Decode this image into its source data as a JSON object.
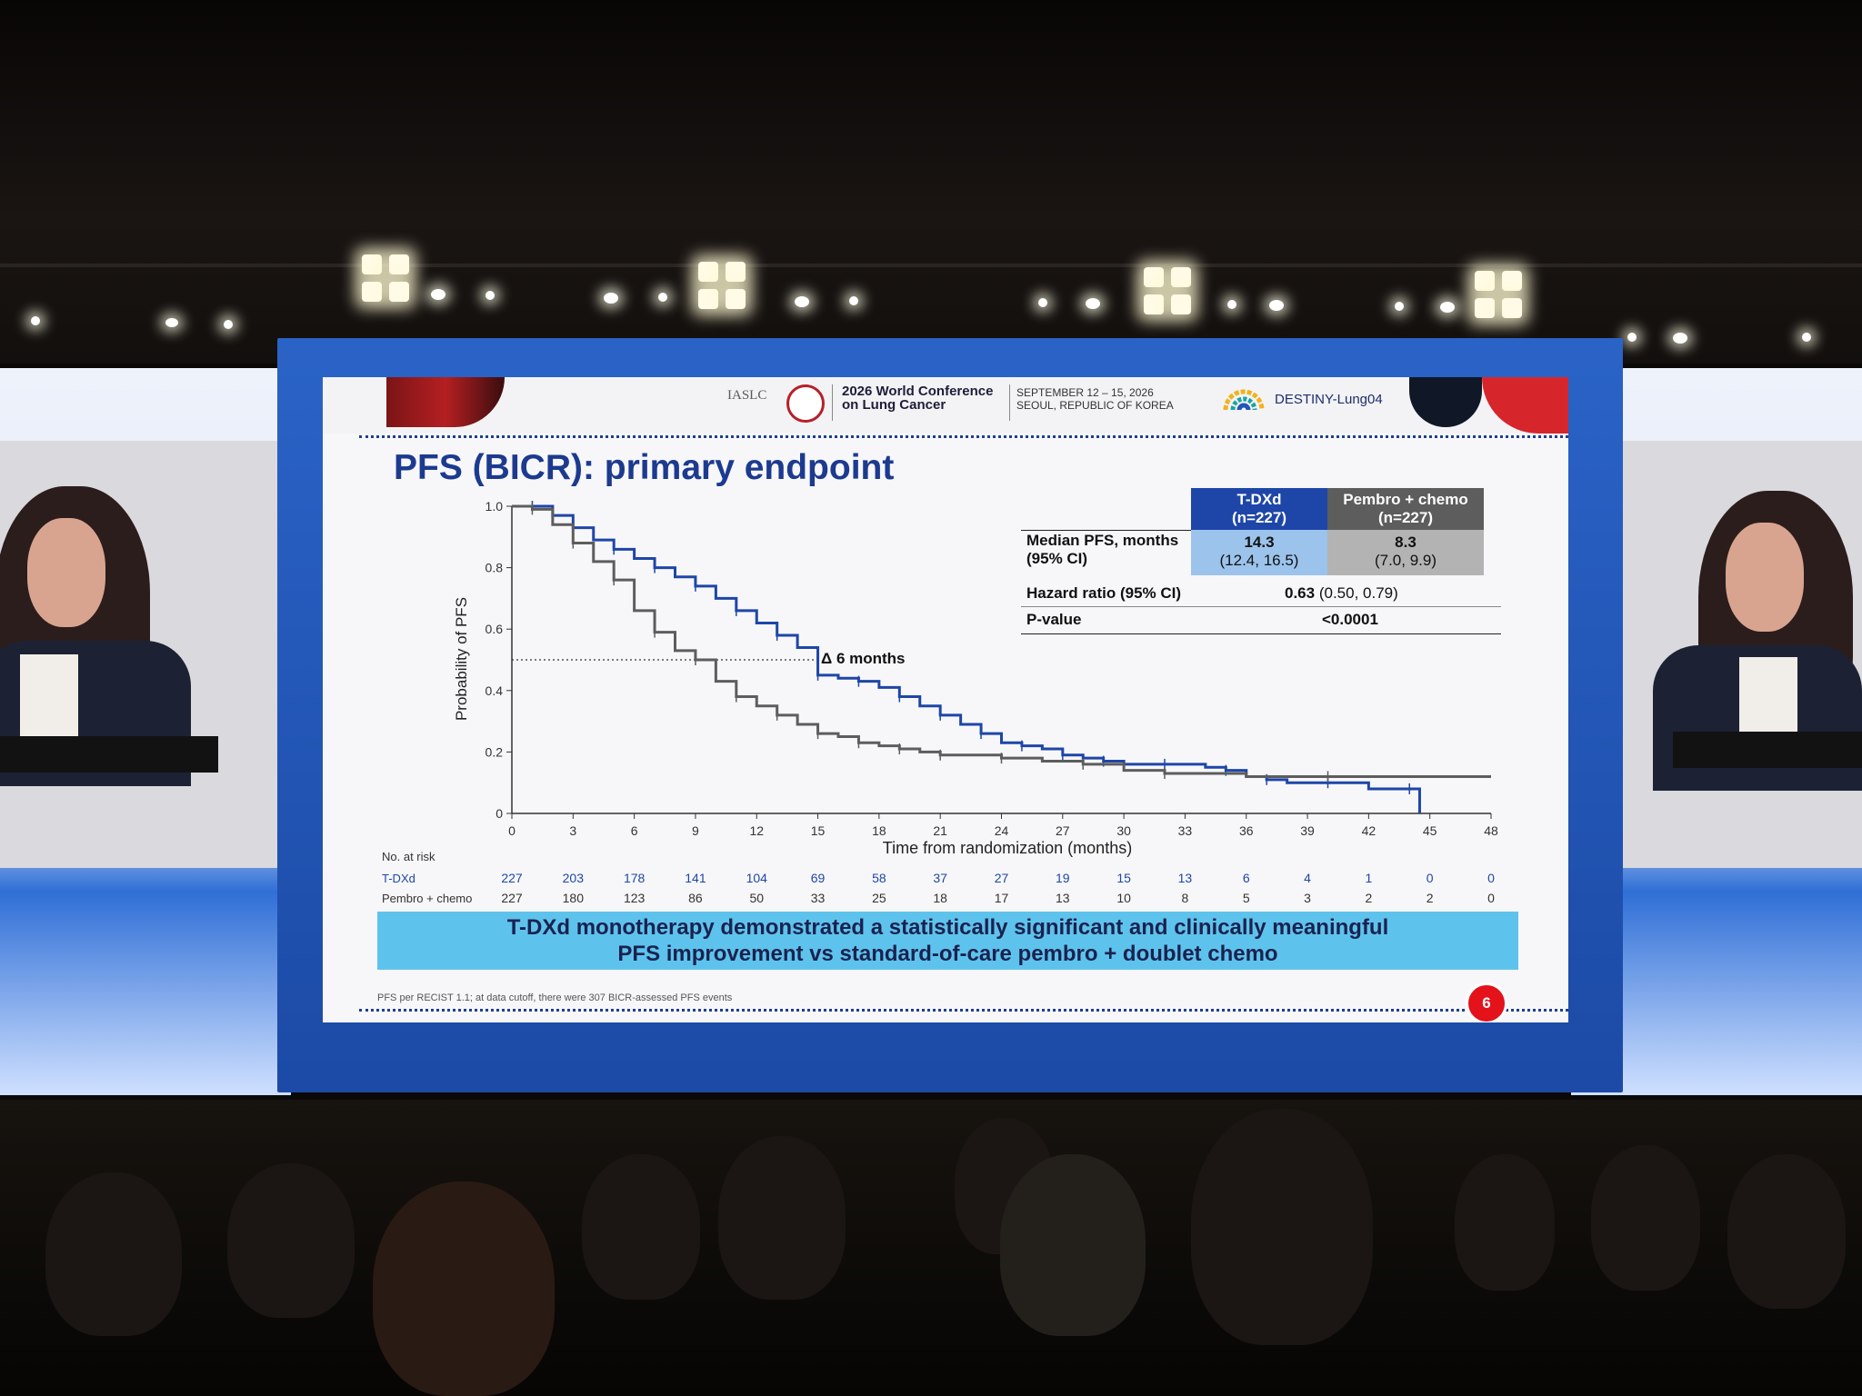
{
  "colors": {
    "tdxd": "#1e46a8",
    "pembro": "#5d5d5d",
    "banner": "#5ec3ec",
    "title": "#1c3a8f",
    "badge": "#e3121b"
  },
  "header": {
    "iaslc": "IASLC",
    "conference_line1": "2026 World Conference",
    "conference_line2": "on Lung Cancer",
    "date_line1": "SEPTEMBER 12 – 15, 2026",
    "date_line2": "SEOUL, REPUBLIC OF KOREA",
    "study_logo_name": "DESTINY-Lung04"
  },
  "slide": {
    "title": "PFS (BICR): primary endpoint",
    "banner_line1": "T-DXd monotherapy demonstrated a statistically significant and clinically meaningful",
    "banner_line2": "PFS improvement vs standard-of-care pembro + doublet chemo",
    "footnote": "PFS per RECIST 1.1; at data cutoff, there were 307 BICR-assessed PFS events",
    "page_number": "6"
  },
  "table": {
    "col1_line1": "T-DXd",
    "col1_line2": "(n=227)",
    "col2_line1": "Pembro + chemo",
    "col2_line2": "(n=227)",
    "row1_label_line1": "Median PFS, months",
    "row1_label_line2": "(95% CI)",
    "row1_tdxd_median": "14.3",
    "row1_tdxd_ci": "(12.4, 16.5)",
    "row1_pembro_median": "8.3",
    "row1_pembro_ci": "(7.0, 9.9)",
    "row2_label": "Hazard ratio (95% CI)",
    "row2_value_bold": "0.63",
    "row2_value_ci": "(0.50, 0.79)",
    "row3_label": "P-value",
    "row3_value": "<0.0001"
  },
  "chart_data": {
    "type": "line",
    "title": "",
    "xlabel": "Time from randomization (months)",
    "ylabel": "Probability of PFS",
    "xlim": [
      0,
      48
    ],
    "ylim": [
      0,
      1.0
    ],
    "xticks": [
      0,
      3,
      6,
      9,
      12,
      15,
      18,
      21,
      24,
      27,
      30,
      33,
      36,
      39,
      42,
      45,
      48
    ],
    "yticks": [
      0,
      0.2,
      0.4,
      0.6,
      0.8,
      1.0
    ],
    "ytick_labels": [
      "0",
      "0.2",
      "0.4",
      "0.6",
      "0.8",
      "1.0"
    ],
    "median_reference_y": 0.5,
    "annotation": "Δ 6 months",
    "series": [
      {
        "name": "T-DXd",
        "color": "#1e46a8",
        "x": [
          0,
          1,
          2,
          3,
          4,
          5,
          6,
          7,
          8,
          9,
          10,
          11,
          12,
          13,
          14,
          15,
          16,
          17,
          18,
          19,
          20,
          21,
          22,
          23,
          24,
          25,
          26,
          27,
          28,
          29,
          30,
          32,
          34,
          35,
          36,
          37,
          38,
          40,
          42,
          44,
          44.5,
          44.5
        ],
        "y": [
          1.0,
          1.0,
          0.97,
          0.93,
          0.89,
          0.86,
          0.83,
          0.8,
          0.77,
          0.74,
          0.7,
          0.66,
          0.62,
          0.58,
          0.54,
          0.45,
          0.44,
          0.43,
          0.41,
          0.38,
          0.35,
          0.32,
          0.29,
          0.26,
          0.23,
          0.22,
          0.21,
          0.19,
          0.18,
          0.17,
          0.16,
          0.16,
          0.15,
          0.14,
          0.12,
          0.11,
          0.1,
          0.1,
          0.08,
          0.08,
          0.08,
          0.0
        ]
      },
      {
        "name": "Pembro + chemo",
        "color": "#5d5d5d",
        "x": [
          0,
          1,
          2,
          3,
          4,
          5,
          6,
          7,
          8,
          9,
          10,
          11,
          12,
          13,
          14,
          15,
          16,
          17,
          18,
          19,
          20,
          21,
          22,
          24,
          26,
          28,
          30,
          32,
          36,
          40,
          44,
          48
        ],
        "y": [
          1.0,
          0.99,
          0.94,
          0.88,
          0.82,
          0.76,
          0.66,
          0.59,
          0.53,
          0.5,
          0.43,
          0.38,
          0.35,
          0.32,
          0.29,
          0.26,
          0.25,
          0.23,
          0.22,
          0.21,
          0.2,
          0.19,
          0.19,
          0.18,
          0.17,
          0.16,
          0.14,
          0.13,
          0.12,
          0.12,
          0.12,
          0.12
        ]
      }
    ],
    "risk_table": {
      "header": "No. at risk",
      "rows": [
        {
          "label": "T-DXd",
          "color": "#1e46a8",
          "values": [
            "227",
            "203",
            "178",
            "141",
            "104",
            "69",
            "58",
            "37",
            "27",
            "19",
            "15",
            "13",
            "6",
            "4",
            "1",
            "0",
            "0"
          ]
        },
        {
          "label": "Pembro + chemo",
          "color": "#5d5d5d",
          "values": [
            "227",
            "180",
            "123",
            "86",
            "50",
            "33",
            "25",
            "18",
            "17",
            "13",
            "10",
            "8",
            "5",
            "3",
            "2",
            "2",
            "0"
          ]
        }
      ]
    }
  }
}
